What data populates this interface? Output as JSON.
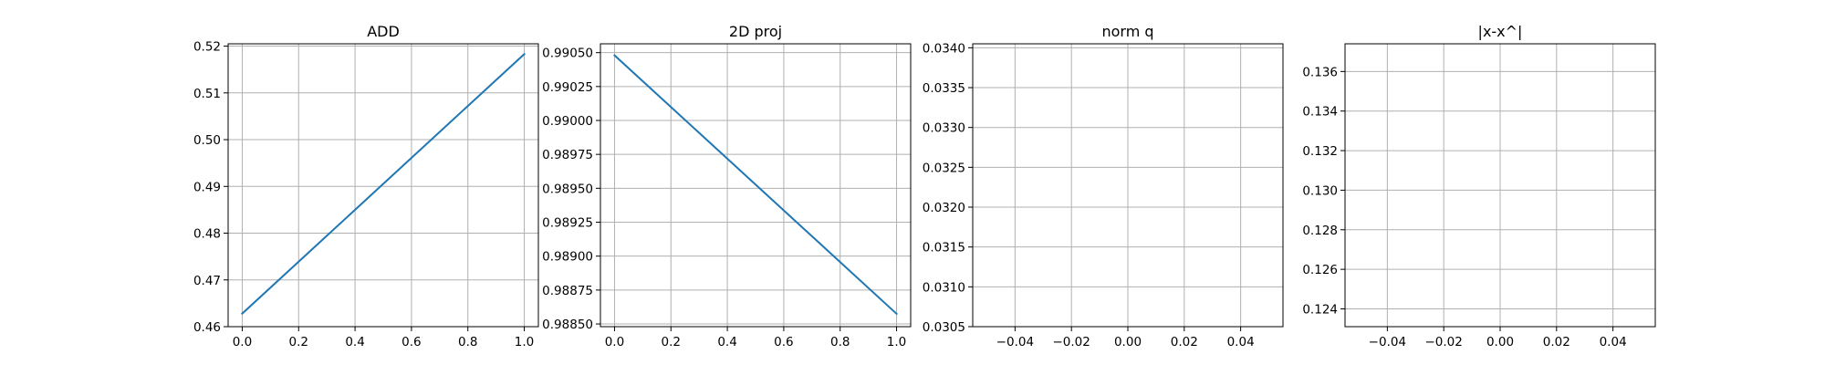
{
  "chart_data": [
    {
      "type": "line",
      "title": "ADD",
      "xlabel": "",
      "ylabel": "",
      "xlim": [
        -0.05,
        1.05
      ],
      "ylim": [
        0.46,
        0.5205
      ],
      "xticks": [
        0.0,
        0.2,
        0.4,
        0.6,
        0.8,
        1.0
      ],
      "xtick_labels": [
        "0.0",
        "0.2",
        "0.4",
        "0.6",
        "0.8",
        "1.0"
      ],
      "yticks": [
        0.46,
        0.47,
        0.48,
        0.49,
        0.5,
        0.51,
        0.52
      ],
      "ytick_labels": [
        "0.46",
        "0.47",
        "0.48",
        "0.49",
        "0.50",
        "0.51",
        "0.52"
      ],
      "grid": true,
      "series": [
        {
          "x": [
            0.0,
            1.0
          ],
          "y": [
            0.4628,
            0.5183
          ],
          "color": "#1f77b4"
        }
      ]
    },
    {
      "type": "line",
      "title": "2D proj",
      "xlabel": "",
      "ylabel": "",
      "xlim": [
        -0.05,
        1.05
      ],
      "ylim": [
        0.98848,
        0.990565
      ],
      "xticks": [
        0.0,
        0.2,
        0.4,
        0.6,
        0.8,
        1.0
      ],
      "xtick_labels": [
        "0.0",
        "0.2",
        "0.4",
        "0.6",
        "0.8",
        "1.0"
      ],
      "yticks": [
        0.9885,
        0.98875,
        0.989,
        0.98925,
        0.9895,
        0.98975,
        0.99,
        0.99025,
        0.9905
      ],
      "ytick_labels": [
        "0.98850",
        "0.98875",
        "0.98900",
        "0.98925",
        "0.98950",
        "0.98975",
        "0.99000",
        "0.99025",
        "0.99050"
      ],
      "grid": true,
      "series": [
        {
          "x": [
            0.0,
            1.0
          ],
          "y": [
            0.99048,
            0.988575
          ],
          "color": "#1f77b4"
        }
      ]
    },
    {
      "type": "line",
      "title": "norm q",
      "xlabel": "",
      "ylabel": "",
      "xlim": [
        -0.055,
        0.055
      ],
      "ylim": [
        0.0305,
        0.03405
      ],
      "xticks": [
        -0.04,
        -0.02,
        0.0,
        0.02,
        0.04
      ],
      "xtick_labels": [
        "−0.04",
        "−0.02",
        "0.00",
        "0.02",
        "0.04"
      ],
      "yticks": [
        0.0305,
        0.031,
        0.0315,
        0.032,
        0.0325,
        0.033,
        0.0335,
        0.034
      ],
      "ytick_labels": [
        "0.0305",
        "0.0310",
        "0.0315",
        "0.0320",
        "0.0325",
        "0.0330",
        "0.0335",
        "0.0340"
      ],
      "grid": true,
      "series": []
    },
    {
      "type": "line",
      "title": "|x-x^|",
      "xlabel": "",
      "ylabel": "",
      "xlim": [
        -0.055,
        0.055
      ],
      "ylim": [
        0.1231,
        0.1374
      ],
      "xticks": [
        -0.04,
        -0.02,
        0.0,
        0.02,
        0.04
      ],
      "xtick_labels": [
        "−0.04",
        "−0.02",
        "0.00",
        "0.02",
        "0.04"
      ],
      "yticks": [
        0.124,
        0.126,
        0.128,
        0.13,
        0.132,
        0.134,
        0.136
      ],
      "ytick_labels": [
        "0.124",
        "0.126",
        "0.128",
        "0.130",
        "0.132",
        "0.134",
        "0.136"
      ],
      "grid": true,
      "series": []
    }
  ]
}
